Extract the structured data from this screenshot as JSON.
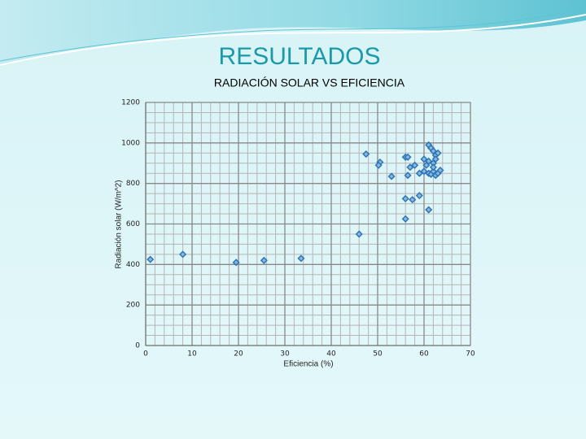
{
  "header": {
    "title": "RESULTADOS"
  },
  "chart_data": {
    "type": "scatter",
    "title": "RADIACIÓN SOLAR VS EFICIENCIA",
    "x_label": "Eficiencia (%)",
    "y_label": "Radiación solar (W/m^2)",
    "xlim": [
      0,
      70
    ],
    "xticks": [
      0,
      10,
      20,
      30,
      40,
      50,
      60,
      70
    ],
    "ylim": [
      0,
      1200
    ],
    "yticks": [
      0,
      200,
      400,
      600,
      800,
      1000,
      1200
    ],
    "grid": true,
    "color": "#2e75b6",
    "x": [
      1,
      8,
      19.5,
      25.5,
      33.5,
      46,
      47.5,
      50.5,
      50.2,
      53,
      56,
      56.5,
      56.5,
      57,
      58,
      56,
      57.5,
      59,
      56,
      61,
      59,
      60,
      60,
      60.5,
      61,
      61.5,
      62,
      62,
      62.5,
      63,
      61,
      61.5,
      62,
      62.5,
      63,
      63.5,
      62,
      61,
      62.5
    ],
    "values": [
      425,
      450,
      410,
      420,
      430,
      550,
      945,
      905,
      890,
      835,
      930,
      930,
      840,
      880,
      890,
      725,
      720,
      740,
      625,
      670,
      850,
      860,
      920,
      890,
      990,
      975,
      900,
      960,
      940,
      950,
      850,
      845,
      860,
      840,
      850,
      865,
      880,
      910,
      920
    ]
  }
}
